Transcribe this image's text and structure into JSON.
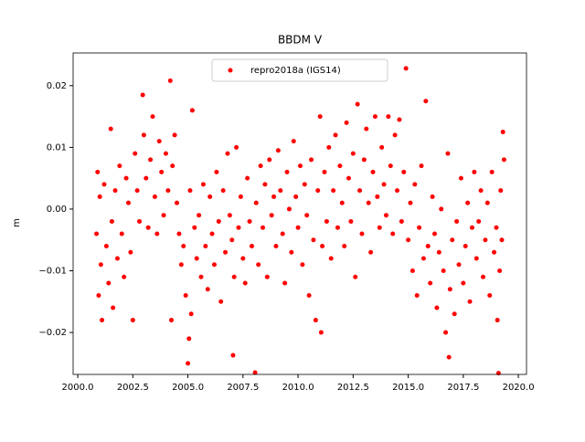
{
  "chart_data": {
    "type": "scatter",
    "title": "BBDM V",
    "y_label": "m",
    "legend": "upper center",
    "grid": false,
    "xlim": [
      1999.79,
      2020.37
    ],
    "ylim": [
      -0.0268,
      0.0253
    ],
    "xticks": [
      {
        "value": 2000.0,
        "label": "2000.0"
      },
      {
        "value": 2002.5,
        "label": "2002.5"
      },
      {
        "value": 2005.0,
        "label": "2005.0"
      },
      {
        "value": 2007.5,
        "label": "2007.5"
      },
      {
        "value": 2010.0,
        "label": "2010.0"
      },
      {
        "value": 2012.5,
        "label": "2012.5"
      },
      {
        "value": 2015.0,
        "label": "2015.0"
      },
      {
        "value": 2017.5,
        "label": "2017.5"
      },
      {
        "value": 2020.0,
        "label": "2020.0"
      }
    ],
    "yticks": [
      {
        "value": -0.02,
        "label": "−0.02"
      },
      {
        "value": -0.01,
        "label": "−0.01"
      },
      {
        "value": 0,
        "label": "0.00"
      },
      0.01,
      0.02
    ],
    "x": [
      2000.85,
      2000.9,
      2000.95,
      2001.0,
      2001.05,
      2001.1,
      2001.2,
      2001.3,
      2001.4,
      2001.5,
      2001.55,
      2001.6,
      2001.7,
      2001.8,
      2001.9,
      2002.0,
      2002.1,
      2002.2,
      2002.3,
      2002.4,
      2002.5,
      2002.6,
      2002.7,
      2002.8,
      2002.95,
      2003.0,
      2003.1,
      2003.2,
      2003.3,
      2003.4,
      2003.5,
      2003.6,
      2003.7,
      2003.8,
      2003.9,
      2004.0,
      2004.1,
      2004.2,
      2004.25,
      2004.3,
      2004.4,
      2004.5,
      2004.6,
      2004.7,
      2004.8,
      2004.9,
      2005.0,
      2005.05,
      2005.1,
      2005.15,
      2005.2,
      2005.3,
      2005.4,
      2005.5,
      2005.6,
      2005.7,
      2005.8,
      2005.9,
      2006.0,
      2006.1,
      2006.2,
      2006.3,
      2006.4,
      2006.5,
      2006.6,
      2006.7,
      2006.8,
      2006.9,
      2007.0,
      2007.05,
      2007.1,
      2007.2,
      2007.3,
      2007.4,
      2007.5,
      2007.6,
      2007.7,
      2007.8,
      2007.9,
      2008.05,
      2008.1,
      2008.2,
      2008.3,
      2008.4,
      2008.5,
      2008.6,
      2008.7,
      2008.8,
      2008.9,
      2009.0,
      2009.1,
      2009.2,
      2009.3,
      2009.4,
      2009.5,
      2009.6,
      2009.7,
      2009.8,
      2009.9,
      2010.0,
      2010.1,
      2010.2,
      2010.3,
      2010.4,
      2010.5,
      2010.6,
      2010.7,
      2010.8,
      2010.9,
      2011.0,
      2011.05,
      2011.1,
      2011.2,
      2011.3,
      2011.4,
      2011.5,
      2011.6,
      2011.7,
      2011.8,
      2011.9,
      2012.0,
      2012.1,
      2012.2,
      2012.3,
      2012.4,
      2012.5,
      2012.6,
      2012.7,
      2012.8,
      2012.9,
      2013.0,
      2013.1,
      2013.2,
      2013.3,
      2013.4,
      2013.5,
      2013.6,
      2013.7,
      2013.8,
      2013.9,
      2014.0,
      2014.1,
      2014.2,
      2014.3,
      2014.4,
      2014.5,
      2014.6,
      2014.7,
      2014.8,
      2014.9,
      2015.0,
      2015.1,
      2015.2,
      2015.3,
      2015.4,
      2015.5,
      2015.6,
      2015.7,
      2015.8,
      2015.9,
      2016.0,
      2016.1,
      2016.2,
      2016.3,
      2016.4,
      2016.5,
      2016.6,
      2016.7,
      2016.8,
      2016.85,
      2016.9,
      2017.0,
      2017.1,
      2017.2,
      2017.3,
      2017.4,
      2017.5,
      2017.6,
      2017.7,
      2017.8,
      2017.9,
      2018.0,
      2018.1,
      2018.2,
      2018.3,
      2018.4,
      2018.5,
      2018.6,
      2018.7,
      2018.8,
      2018.9,
      2019.0,
      2019.05,
      2019.1,
      2019.15,
      2019.2,
      2019.25,
      2019.3,
      2019.35
    ],
    "series": [
      {
        "name": "repro2018a (IGS14)",
        "color": "#ff0000",
        "values": [
          -0.004,
          0.006,
          -0.014,
          0.002,
          -0.009,
          -0.018,
          0.004,
          -0.006,
          -0.012,
          0.013,
          -0.002,
          -0.016,
          0.003,
          -0.008,
          0.007,
          -0.004,
          -0.011,
          0.005,
          0.001,
          -0.007,
          -0.018,
          0.009,
          0.003,
          -0.002,
          0.0185,
          0.012,
          0.005,
          -0.003,
          0.008,
          0.015,
          0.002,
          -0.004,
          0.011,
          0.006,
          -0.001,
          0.009,
          0.003,
          0.0208,
          -0.018,
          0.007,
          0.012,
          0.001,
          -0.004,
          -0.009,
          -0.006,
          -0.014,
          -0.025,
          -0.021,
          0.003,
          -0.017,
          0.016,
          -0.003,
          -0.008,
          -0.001,
          -0.011,
          0.004,
          -0.006,
          -0.013,
          0.002,
          -0.004,
          -0.009,
          0.006,
          -0.002,
          -0.015,
          0.003,
          -0.007,
          0.009,
          -0.001,
          -0.005,
          -0.0237,
          -0.011,
          0.01,
          -0.003,
          0.002,
          -0.008,
          -0.012,
          0.005,
          -0.002,
          -0.006,
          -0.0265,
          0.001,
          -0.009,
          0.007,
          -0.003,
          0.004,
          -0.011,
          0.008,
          -0.001,
          0.002,
          -0.006,
          0.0095,
          0.003,
          -0.004,
          -0.012,
          0.006,
          0,
          -0.007,
          0.011,
          0.002,
          -0.003,
          0.007,
          -0.009,
          0.004,
          -0.001,
          -0.014,
          0.008,
          -0.005,
          -0.018,
          0.003,
          0.015,
          -0.02,
          -0.006,
          0.006,
          -0.002,
          0.01,
          -0.008,
          0.003,
          0.012,
          -0.003,
          0.007,
          0.001,
          -0.006,
          0.014,
          0.005,
          -0.002,
          0.009,
          -0.011,
          0.017,
          0.003,
          -0.004,
          0.008,
          0.013,
          0.001,
          -0.007,
          0.006,
          0.015,
          0.002,
          -0.003,
          0.01,
          0.004,
          -0.001,
          0.015,
          0.007,
          -0.004,
          0.012,
          0.003,
          0.0145,
          -0.002,
          0.006,
          0.0228,
          -0.005,
          0.001,
          -0.01,
          0.004,
          -0.014,
          -0.003,
          0.007,
          -0.008,
          0.0175,
          -0.006,
          -0.012,
          0.002,
          -0.004,
          -0.016,
          -0.007,
          0,
          -0.01,
          -0.02,
          0.009,
          -0.024,
          -0.013,
          -0.005,
          -0.017,
          -0.002,
          -0.009,
          0.005,
          -0.012,
          -0.006,
          0.001,
          -0.015,
          -0.003,
          0.006,
          -0.008,
          -0.002,
          0.003,
          -0.011,
          -0.005,
          0.001,
          -0.014,
          0.006,
          -0.007,
          -0.003,
          -0.018,
          -0.0266,
          -0.01,
          0.003,
          -0.005,
          0.0125,
          0.008
        ]
      }
    ]
  }
}
